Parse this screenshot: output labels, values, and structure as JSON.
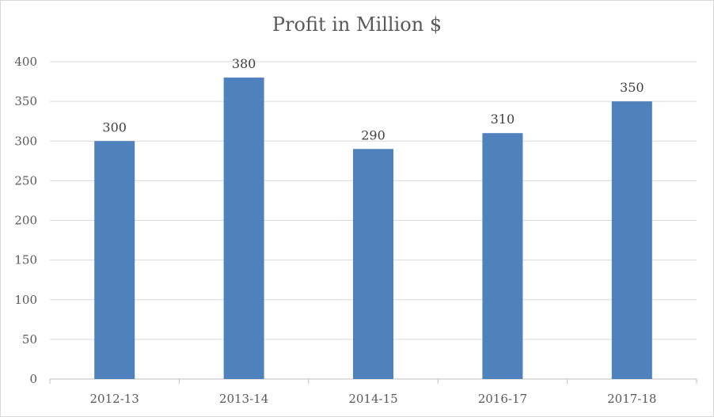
{
  "chart_data": {
    "type": "bar",
    "title": "Profit in Million $",
    "xlabel": "",
    "ylabel": "",
    "categories": [
      "2012-13",
      "2013-14",
      "2014-15",
      "2016-17",
      "2017-18"
    ],
    "values": [
      300,
      380,
      290,
      310,
      350
    ],
    "ylim": [
      0,
      400
    ],
    "yticks": [
      0,
      50,
      100,
      150,
      200,
      250,
      300,
      350,
      400
    ],
    "grid": true,
    "legend": "none",
    "data_labels": true,
    "colors": {
      "bar": "#4f81bd",
      "grid": "#d9d9d9",
      "axis": "#bfbfbf"
    }
  }
}
